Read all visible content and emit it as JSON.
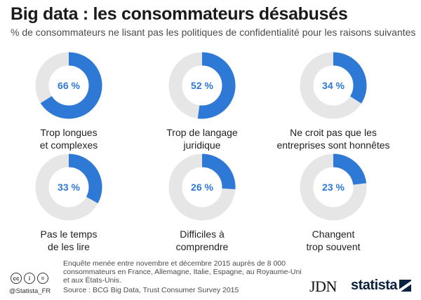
{
  "header": {
    "title": "Big data : les consommateurs désabusés",
    "subtitle": "% de consommateurs ne lisant pas les politiques de confidentialité pour les raisons suivantes"
  },
  "colors": {
    "accent": "#2e78d6",
    "track": "#e6e6e6",
    "value_text": "#2e78d6"
  },
  "chart_data": {
    "type": "pie",
    "title": "Big data : les consommateurs désabusés",
    "subtitle": "% de consommateurs ne lisant pas les politiques de confidentialité pour les raisons suivantes",
    "unit": "%",
    "items": [
      {
        "label": "Trop longues\net complexes",
        "value": 66,
        "value_label": "66 %"
      },
      {
        "label": "Trop de langage\njuridique",
        "value": 52,
        "value_label": "52 %"
      },
      {
        "label": "Ne croit pas que les\nentreprises sont honnêtes",
        "value": 34,
        "value_label": "34 %"
      },
      {
        "label": "Pas le temps\nde les lire",
        "value": 33,
        "value_label": "33 %"
      },
      {
        "label": "Difficiles à\ncomprendre",
        "value": 26,
        "value_label": "26 %"
      },
      {
        "label": "Changent\ntrop souvent",
        "value": 23,
        "value_label": "23 %"
      }
    ]
  },
  "footer": {
    "cc_icons": [
      "cc",
      "i",
      "="
    ],
    "handle": "@Statista_FR",
    "note": "Enquête menée entre novembre et décembre 2015 auprès de 8 000 consommateurs en France, Allemagne, Italie, Espagne, au Royaume-Uni et aux États-Unis.",
    "source": "Source : BCG Big Data, Trust Consumer Survey 2015",
    "logo_jdn": "JDN",
    "logo_statista": "statista"
  }
}
